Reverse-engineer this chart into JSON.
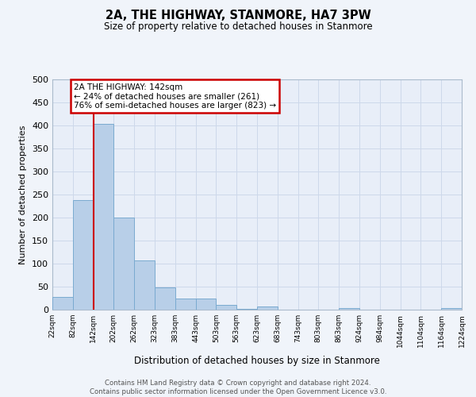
{
  "title": "2A, THE HIGHWAY, STANMORE, HA7 3PW",
  "subtitle": "Size of property relative to detached houses in Stanmore",
  "xlabel": "Distribution of detached houses by size in Stanmore",
  "ylabel": "Number of detached properties",
  "bin_edges": [
    22,
    82,
    142,
    202,
    262,
    323,
    383,
    443,
    503,
    563,
    623,
    683,
    743,
    803,
    863,
    924,
    984,
    1044,
    1104,
    1164,
    1224
  ],
  "bin_labels": [
    "22sqm",
    "82sqm",
    "142sqm",
    "202sqm",
    "262sqm",
    "323sqm",
    "383sqm",
    "443sqm",
    "503sqm",
    "563sqm",
    "623sqm",
    "683sqm",
    "743sqm",
    "803sqm",
    "863sqm",
    "924sqm",
    "984sqm",
    "1044sqm",
    "1104sqm",
    "1164sqm",
    "1224sqm"
  ],
  "counts": [
    27,
    238,
    403,
    200,
    107,
    49,
    25,
    25,
    10,
    2,
    7,
    0,
    0,
    0,
    4,
    0,
    0,
    0,
    0,
    3
  ],
  "bar_color": "#b8cfe8",
  "bar_edge_color": "#7aaad0",
  "property_value": 142,
  "vline_color": "#cc0000",
  "annotation_text": "2A THE HIGHWAY: 142sqm\n← 24% of detached houses are smaller (261)\n76% of semi-detached houses are larger (823) →",
  "annotation_box_color": "#cc0000",
  "ylim": [
    0,
    500
  ],
  "yticks": [
    0,
    50,
    100,
    150,
    200,
    250,
    300,
    350,
    400,
    450,
    500
  ],
  "grid_color": "#cdd8ea",
  "bg_color": "#e8eef8",
  "fig_bg_color": "#f0f4fa",
  "footer_line1": "Contains HM Land Registry data © Crown copyright and database right 2024.",
  "footer_line2": "Contains public sector information licensed under the Open Government Licence v3.0."
}
